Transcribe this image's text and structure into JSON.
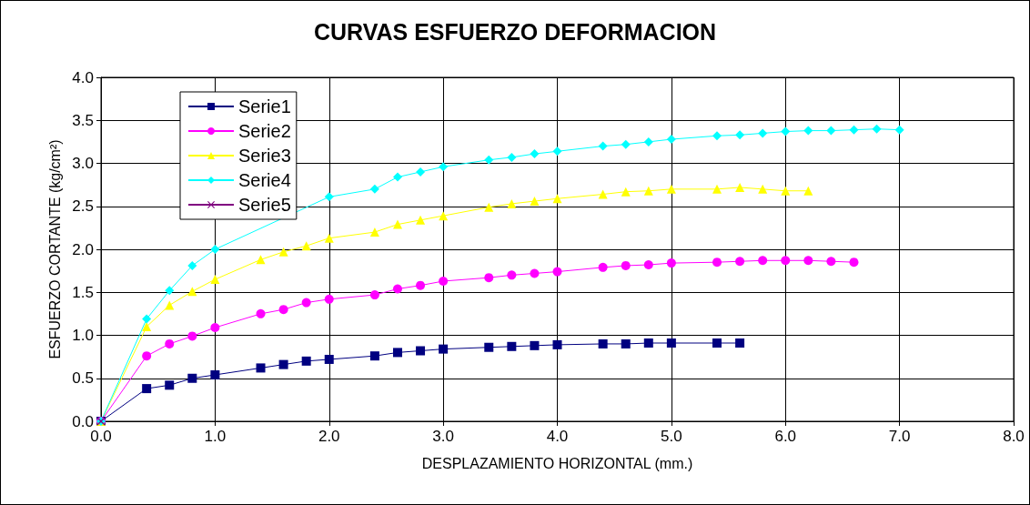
{
  "chart_data": {
    "type": "line",
    "title": "CURVAS ESFUERZO DEFORMACION",
    "xlabel": "DESPLAZAMIENTO HORIZONTAL (mm.)",
    "ylabel": "ESFUERZO CORTANTE (kg/cm²)",
    "xlim": [
      0,
      8
    ],
    "xticks": [
      {
        "value": 0,
        "label": "0.0"
      },
      {
        "value": 1,
        "label": "1.0"
      },
      {
        "value": 2,
        "label": "2.0"
      },
      {
        "value": 3,
        "label": "3.0"
      },
      {
        "value": 4,
        "label": "4.0"
      },
      {
        "value": 5,
        "label": "5.0"
      },
      {
        "value": 6,
        "label": "6.0"
      },
      {
        "value": 7,
        "label": "7.0"
      },
      {
        "value": 8,
        "label": "8.0"
      }
    ],
    "ylim": [
      0,
      4
    ],
    "yticks": [
      {
        "value": 0,
        "label": "0.0"
      },
      {
        "value": 0.5,
        "label": "0.5"
      },
      {
        "value": 1,
        "label": "1.0"
      },
      {
        "value": 1.5,
        "label": "1.5"
      },
      {
        "value": 2,
        "label": "2.0"
      },
      {
        "value": 2.5,
        "label": "2.5"
      },
      {
        "value": 3,
        "label": "3.0"
      },
      {
        "value": 3.5,
        "label": "3.5"
      },
      {
        "value": 4,
        "label": "4.0"
      }
    ],
    "grid": true,
    "legend": "top left",
    "line_style": "solid",
    "series": [
      {
        "name": "Serie1",
        "color": "#000080",
        "marker": "square",
        "x": [
          0,
          0.4,
          0.6,
          0.8,
          1.0,
          1.4,
          1.6,
          1.8,
          2.0,
          2.4,
          2.6,
          2.8,
          3.0,
          3.4,
          3.6,
          3.8,
          4.0,
          4.4,
          4.6,
          4.8,
          5.0,
          5.4,
          5.6
        ],
        "values": [
          0,
          0.38,
          0.42,
          0.5,
          0.54,
          0.62,
          0.66,
          0.7,
          0.72,
          0.76,
          0.8,
          0.82,
          0.84,
          0.86,
          0.87,
          0.88,
          0.89,
          0.9,
          0.9,
          0.91,
          0.91,
          0.91,
          0.91
        ]
      },
      {
        "name": "Serie2",
        "color": "#ff00ff",
        "marker": "circle",
        "x": [
          0,
          0.4,
          0.6,
          0.8,
          1.0,
          1.4,
          1.6,
          1.8,
          2.0,
          2.4,
          2.6,
          2.8,
          3.0,
          3.4,
          3.6,
          3.8,
          4.0,
          4.4,
          4.6,
          4.8,
          5.0,
          5.4,
          5.6,
          5.8,
          6.0,
          6.2,
          6.4,
          6.6
        ],
        "values": [
          0,
          0.76,
          0.9,
          0.99,
          1.09,
          1.25,
          1.3,
          1.38,
          1.42,
          1.47,
          1.54,
          1.58,
          1.63,
          1.67,
          1.7,
          1.72,
          1.74,
          1.79,
          1.81,
          1.82,
          1.84,
          1.85,
          1.86,
          1.87,
          1.87,
          1.87,
          1.86,
          1.85
        ]
      },
      {
        "name": "Serie3",
        "color": "#ffff00",
        "marker": "triangle",
        "x": [
          0,
          0.4,
          0.6,
          0.8,
          1.0,
          1.4,
          1.6,
          1.8,
          2.0,
          2.4,
          2.6,
          2.8,
          3.0,
          3.4,
          3.6,
          3.8,
          4.0,
          4.4,
          4.6,
          4.8,
          5.0,
          5.4,
          5.6,
          5.8,
          6.0,
          6.2
        ],
        "values": [
          0,
          1.1,
          1.35,
          1.51,
          1.65,
          1.88,
          1.97,
          2.04,
          2.13,
          2.2,
          2.29,
          2.34,
          2.39,
          2.49,
          2.53,
          2.56,
          2.59,
          2.64,
          2.67,
          2.68,
          2.7,
          2.7,
          2.72,
          2.7,
          2.68,
          2.68
        ]
      },
      {
        "name": "Serie4",
        "color": "#00ffff",
        "marker": "diamond",
        "x": [
          0,
          0.4,
          0.6,
          0.8,
          1.0,
          1.4,
          1.6,
          1.8,
          2.0,
          2.4,
          2.6,
          2.8,
          3.0,
          3.4,
          3.6,
          3.8,
          4.0,
          4.4,
          4.6,
          4.8,
          5.0,
          5.4,
          5.6,
          5.8,
          6.0,
          6.2,
          6.4,
          6.6,
          6.8,
          7.0
        ],
        "values": [
          0,
          1.19,
          1.52,
          1.81,
          2.0,
          null,
          null,
          null,
          2.61,
          2.7,
          2.84,
          2.9,
          2.96,
          3.04,
          3.07,
          3.11,
          3.14,
          3.2,
          3.22,
          3.25,
          3.28,
          3.32,
          3.33,
          3.35,
          3.37,
          3.38,
          3.38,
          3.39,
          3.4,
          3.39
        ]
      },
      {
        "name": "Serie5",
        "color": "#800080",
        "marker": "cross",
        "x": [
          0
        ],
        "values": [
          0
        ]
      }
    ]
  }
}
